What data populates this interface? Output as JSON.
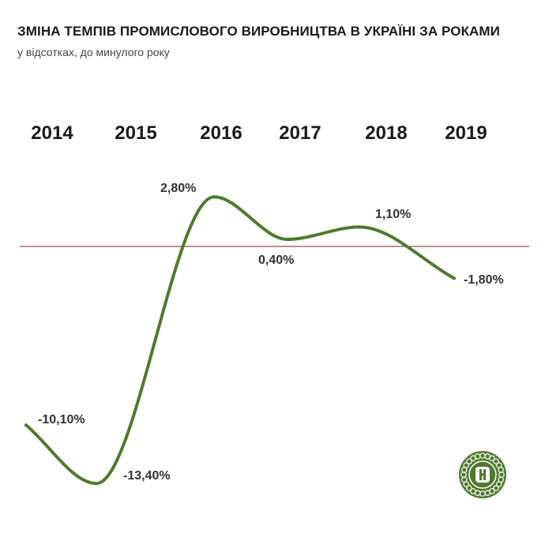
{
  "title": "ЗМІНА ТЕМПІВ ПРОМИСЛОВОГО ВИРОБНИЦТВА В УКРАЇНІ ЗА РОКАМИ",
  "subtitle": "у відсотках, до минулого року",
  "colors": {
    "line": "#4f7a2e",
    "baseline": "#8b1a1a",
    "logo": "#4f7a2e"
  },
  "logo_icon": "circular-seal-logo",
  "chart_data": {
    "type": "line",
    "categories": [
      "2014",
      "2015",
      "2016",
      "2017",
      "2018",
      "2019"
    ],
    "values": [
      -10.1,
      -13.4,
      2.8,
      0.4,
      1.1,
      -1.8
    ],
    "labels": [
      "-10,10%",
      "-13,40%",
      "2,80%",
      "0,40%",
      "1,10%",
      "-1,80%"
    ],
    "reference_line": 0,
    "title": "ЗМІНА ТЕМПІВ ПРОМИСЛОВОГО ВИРОБНИЦТВА В УКРАЇНІ ЗА РОКАМИ",
    "xlabel": "",
    "ylabel": "",
    "grid": false,
    "legend": "none"
  }
}
